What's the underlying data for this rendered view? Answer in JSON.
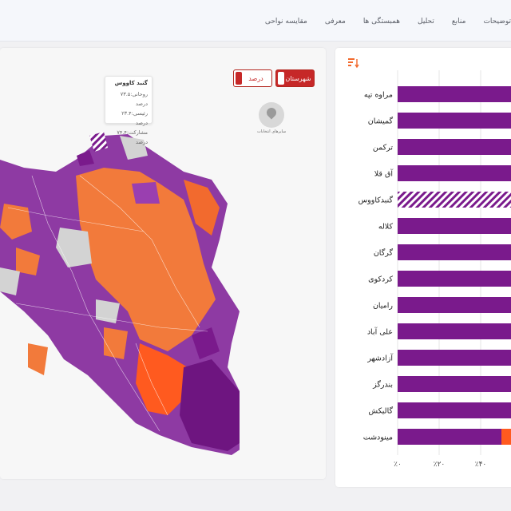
{
  "nav": {
    "items": [
      "مقایسه نواحی",
      "معرفی",
      "همبستگی ها",
      "تحلیل",
      "منابع",
      "توضیحات"
    ]
  },
  "toggles": {
    "county": "شهرستان",
    "percent": "درصد"
  },
  "tooltip": {
    "title": "گنبد کاووس",
    "line1": "روحانی:۷۳.۵ درصد",
    "line2": "رئیسی:۲۳.۴ درصد",
    "line3": "مشارکت:۷۴.۴ درصد"
  },
  "legend_button": {
    "label": "سایرهای انتخابات"
  },
  "colors": {
    "purple": "#7a1a8c",
    "orange": "#ff5a1f",
    "highlight_stripe": "#7a1a8c"
  },
  "chart_data": {
    "type": "bar",
    "orientation": "horizontal",
    "categories": [
      "مراوه تپه",
      "گمیشان",
      "ترکمن",
      "آق قلا",
      "گنبدکاووس",
      "کلاله",
      "گرگان",
      "کردکوی",
      "رامیان",
      "علی آباد",
      "آزادشهر",
      "بندرگز",
      "گالیکش",
      "مینودشت"
    ],
    "series": [
      {
        "values": [
          100,
          100,
          100,
          100,
          100,
          100,
          100,
          100,
          100,
          100,
          100,
          100,
          100,
          50
        ]
      },
      {
        "values": [
          0,
          0,
          0,
          0,
          0,
          0,
          0,
          0,
          0,
          0,
          0,
          0,
          0,
          50
        ]
      }
    ],
    "highlighted": "گنبدکاووس",
    "x_ticks": [
      "٪۰",
      "٪۲۰",
      "٪۴۰"
    ],
    "xlim": [
      0,
      100
    ]
  }
}
